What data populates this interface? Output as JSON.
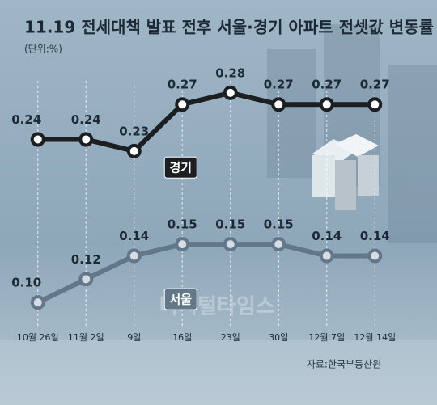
{
  "chart_data": {
    "type": "line",
    "title": "11.19 전세대책 발표 전후 서울·경기 아파트 전셋값 변동률",
    "subtitle": "(단위:%)",
    "source": "자료:한국부동산원",
    "watermark": "디지털타임스",
    "categories": [
      "10월 26일",
      "11월 2일",
      "9일",
      "16일",
      "23일",
      "30일",
      "12월 7일",
      "12월 14일"
    ],
    "series": [
      {
        "name": "경기",
        "color": "#1c1f22",
        "values": [
          0.24,
          0.24,
          0.23,
          0.27,
          0.28,
          0.27,
          0.27,
          0.27
        ],
        "value_labels": [
          "0.24",
          "0.24",
          "0.23",
          "0.27",
          "0.28",
          "0.27",
          "0.27",
          "0.27"
        ]
      },
      {
        "name": "서울",
        "color": "#62788a",
        "values": [
          0.1,
          0.12,
          0.14,
          0.15,
          0.15,
          0.15,
          0.14,
          0.14
        ],
        "value_labels": [
          "0.10",
          "0.12",
          "0.14",
          "0.15",
          "0.15",
          "0.15",
          "0.14",
          "0.14"
        ]
      }
    ],
    "ylim": [
      0.08,
      0.3
    ],
    "grid": true
  }
}
